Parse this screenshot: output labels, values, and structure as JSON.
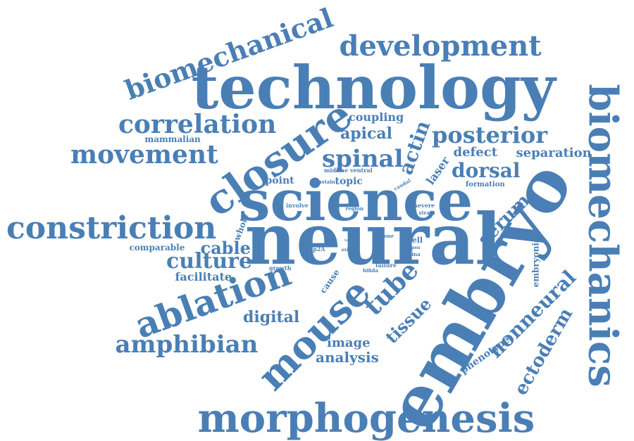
{
  "color": "#4a7fb5",
  "words": [
    {
      "text": "technology",
      "rot": 0
    },
    {
      "text": "embryo",
      "rot": -60
    },
    {
      "text": "neural",
      "rot": 0
    },
    {
      "text": "science",
      "rot": 0
    },
    {
      "text": "closure",
      "rot": -35
    },
    {
      "text": "morphogenesis",
      "rot": 0
    },
    {
      "text": "biomechanics",
      "rot": 90
    },
    {
      "text": "constriction",
      "rot": 0
    },
    {
      "text": "biomechanical",
      "rot": -20
    },
    {
      "text": "development",
      "rot": 0
    },
    {
      "text": "ablation",
      "rot": -20
    },
    {
      "text": "mouse",
      "rot": -45
    },
    {
      "text": "movement",
      "rot": 0
    },
    {
      "text": "correlation",
      "rot": 0
    },
    {
      "text": "amphibian",
      "rot": 0
    },
    {
      "text": "spinal",
      "rot": 0
    },
    {
      "text": "posterior",
      "rot": 0
    },
    {
      "text": "tube",
      "rot": -45
    },
    {
      "text": "culture",
      "rot": 0
    },
    {
      "text": "nonneural",
      "rot": -45
    },
    {
      "text": "ectoderm",
      "rot": -60
    },
    {
      "text": "actin",
      "rot": -70
    },
    {
      "text": "dorsal",
      "rot": 0
    },
    {
      "text": "apical",
      "rot": 0
    },
    {
      "text": "serum",
      "rot": -45
    },
    {
      "text": "tissue",
      "rot": -45
    },
    {
      "text": "cable",
      "rot": 0
    },
    {
      "text": "digital",
      "rot": 0
    },
    {
      "text": "image",
      "rot": 0
    },
    {
      "text": "analysis",
      "rot": 0
    },
    {
      "text": "coupling",
      "rot": 0
    },
    {
      "text": "defect",
      "rot": 0
    },
    {
      "text": "separation",
      "rot": 0
    },
    {
      "text": "phenotype",
      "rot": -35
    },
    {
      "text": "laser",
      "rot": -55
    },
    {
      "text": "facilitate",
      "rot": 0
    },
    {
      "text": "comparable",
      "rot": 0
    },
    {
      "text": "mammalian",
      "rot": 0
    },
    {
      "text": "embryonic",
      "rot": -90
    },
    {
      "text": "whole",
      "rot": -70
    },
    {
      "text": "topic",
      "rot": 0
    },
    {
      "text": "point",
      "rot": 0
    },
    {
      "text": "cause",
      "rot": -55
    },
    {
      "text": "formation",
      "rot": 0
    },
    {
      "text": "midline",
      "rot": 0
    },
    {
      "text": "ventral",
      "rot": 0
    },
    {
      "text": "sustain",
      "rot": 0
    },
    {
      "text": "involve",
      "rot": 0
    },
    {
      "text": "region",
      "rot": 0
    },
    {
      "text": "caudal",
      "rot": -30
    },
    {
      "text": "severe",
      "rot": 0
    },
    {
      "text": "strain",
      "rot": 0
    },
    {
      "text": "growth",
      "rot": 0
    },
    {
      "text": "bp2Δ",
      "rot": 0
    },
    {
      "text": "axis",
      "rot": 0
    },
    {
      "text": "zone",
      "rot": 0
    },
    {
      "text": "cell",
      "rot": 0
    },
    {
      "text": "open",
      "rot": 0
    },
    {
      "text": "spina",
      "rot": 0
    },
    {
      "text": "failure",
      "rot": 0
    },
    {
      "text": "bifida",
      "rot": 0
    },
    {
      "text": "to",
      "rot": 0
    }
  ]
}
